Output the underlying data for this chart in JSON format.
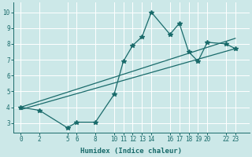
{
  "xlabel": "Humidex (Indice chaleur)",
  "bg_color": "#cce8e8",
  "grid_color": "#b8d8d8",
  "line_color": "#1a6b6b",
  "xticks": [
    0,
    2,
    5,
    6,
    8,
    10,
    11,
    12,
    13,
    14,
    16,
    17,
    18,
    19,
    20,
    22,
    23
  ],
  "yticks": [
    3,
    4,
    5,
    6,
    7,
    8,
    9,
    10
  ],
  "xlim": [
    -0.8,
    24.5
  ],
  "ylim": [
    2.4,
    10.6
  ],
  "line1_x": [
    0,
    2,
    5,
    6,
    8,
    10,
    11,
    12,
    13,
    14,
    16,
    17,
    18,
    19,
    20,
    22,
    23
  ],
  "line1_y": [
    4.0,
    3.8,
    2.7,
    3.05,
    3.05,
    4.8,
    6.9,
    7.9,
    8.45,
    10.0,
    8.6,
    9.3,
    7.5,
    6.9,
    8.1,
    8.0,
    7.7
  ],
  "line2_x": [
    0,
    23
  ],
  "line2_y": [
    4.0,
    8.35
  ],
  "line3_x": [
    0,
    23
  ],
  "line3_y": [
    3.85,
    7.7
  ],
  "marker": "*",
  "markersize": 4,
  "linewidth": 0.9,
  "tick_fontsize": 5.5,
  "label_fontsize": 6.5
}
